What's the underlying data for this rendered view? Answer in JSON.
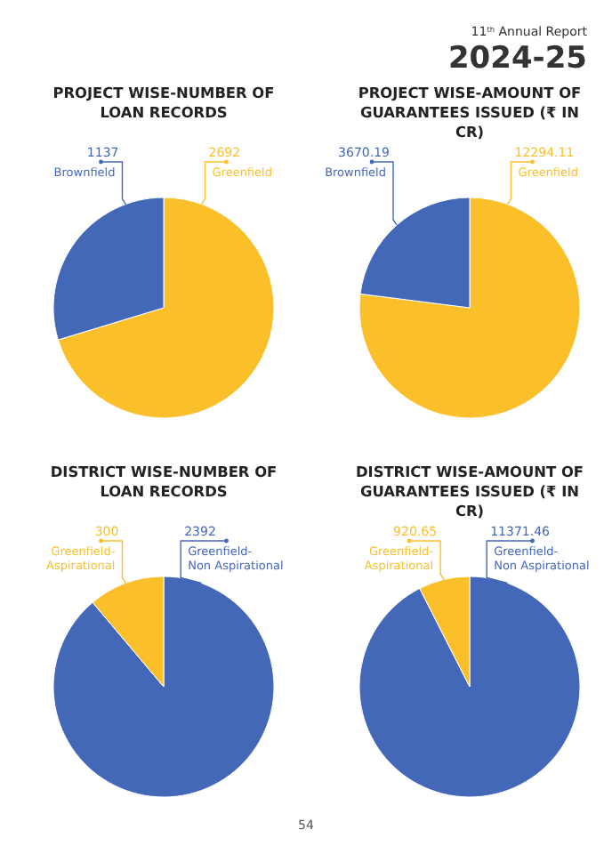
{
  "chart_data": [
    {
      "type": "pie",
      "title": "PROJECT WISE-NUMBER OF LOAN RECORDS",
      "categories": [
        "Greenfield",
        "Brownfield"
      ],
      "values": [
        2692,
        1137
      ],
      "colors": [
        "#fbbf2a",
        "#4468b8"
      ],
      "data_labels": true,
      "annotations": [
        "11$^{th}$ Annual Report",
        "2024-25",
        "54"
      ]
    },
    {
      "type": "pie",
      "title": "PROJECT WISE-AMOUNT OF GUARANTEES ISSUED (₹ IN CR)",
      "categories": [
        "Greenfield",
        "Brownfield"
      ],
      "values": [
        12294.11,
        3670.19
      ],
      "colors": [
        "#fbbf2a",
        "#4468b8"
      ],
      "data_labels": true
    },
    {
      "type": "pie",
      "title": "DISTRICT WISE-NUMBER OF LOAN RECORDS",
      "categories": [
        "Greenfield-Non Aspirational",
        "Greenfield-Aspirational"
      ],
      "values": [
        2392,
        300
      ],
      "colors": [
        "#4468b8",
        "#fbbf2a"
      ],
      "data_labels": true
    },
    {
      "type": "pie",
      "title": "DISTRICT WISE-AMOUNT OF GUARANTEES ISSUED (₹ IN CR)",
      "categories": [
        "Greenfield-Non Aspirational",
        "Greenfield-Aspirational"
      ],
      "values": [
        11371.46,
        920.65
      ],
      "colors": [
        "#4468b8",
        "#fbbf2a"
      ],
      "data_labels": true
    }
  ]
}
